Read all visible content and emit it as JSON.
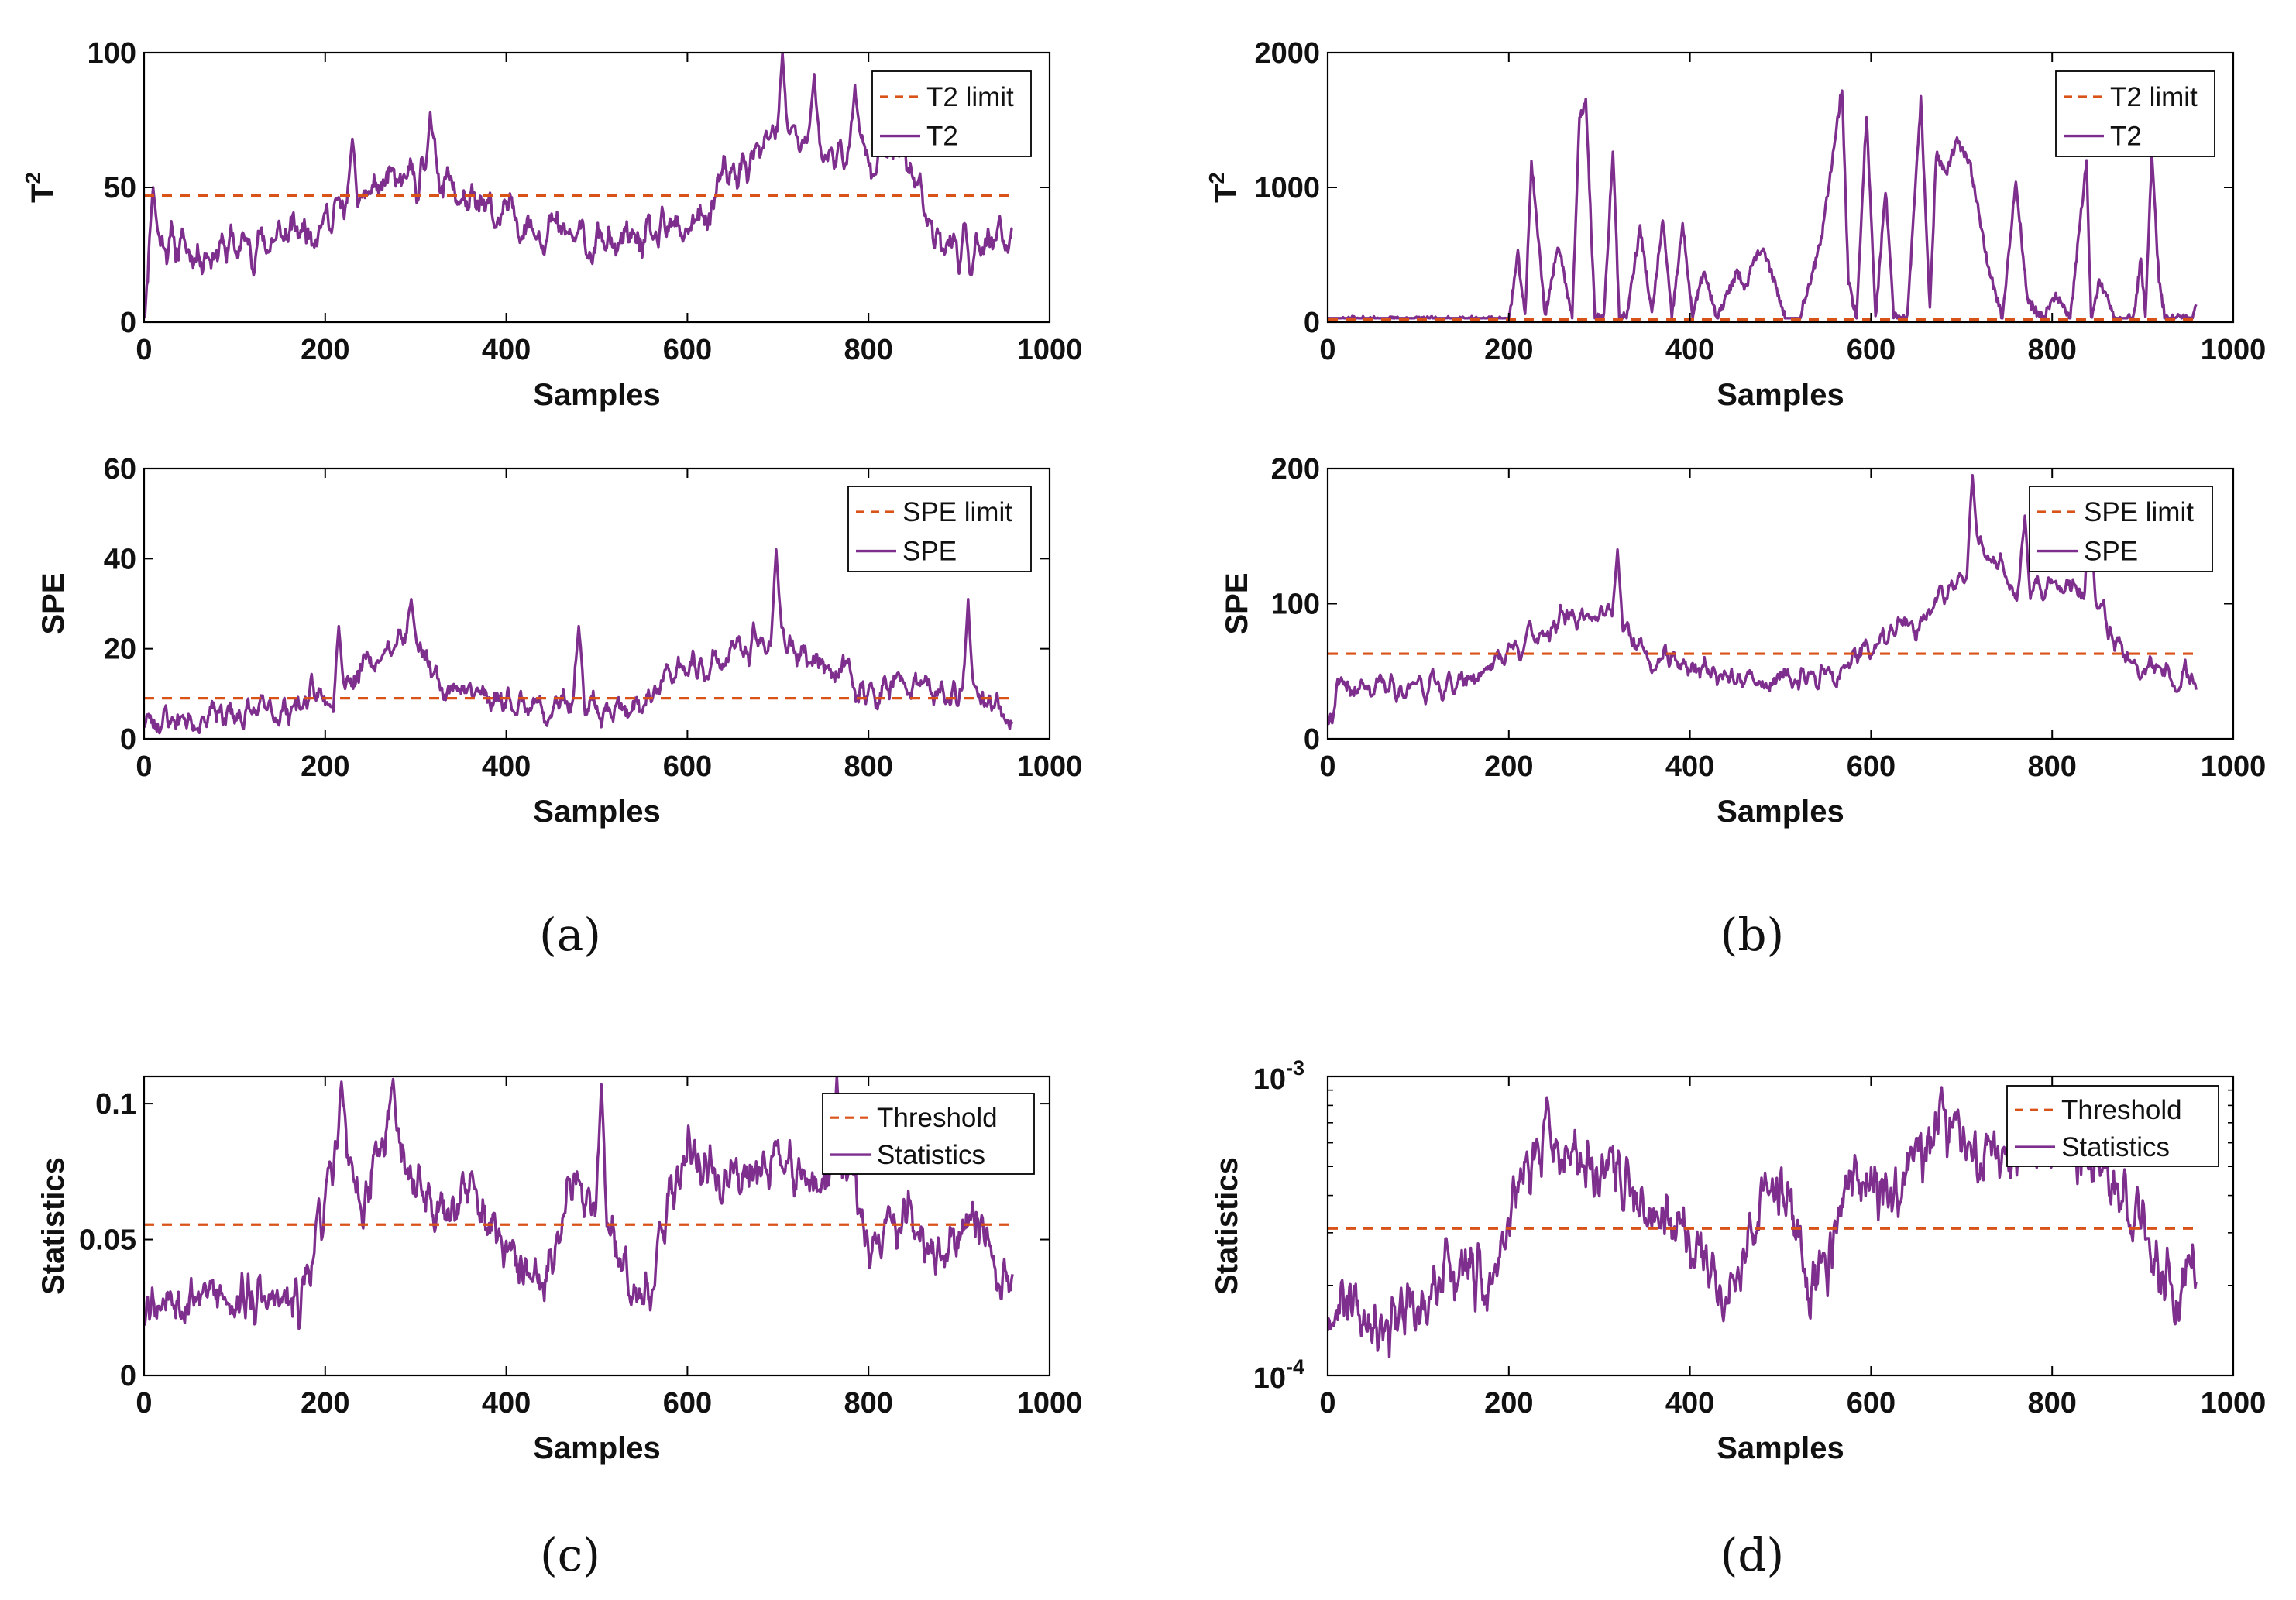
{
  "colors": {
    "series": "#7E2F8E",
    "limit": "#D95319",
    "axis": "#000000"
  },
  "panel_labels": [
    "(a)",
    "(b)",
    "(c)",
    "(d)"
  ],
  "chart_data": [
    {
      "type": "line",
      "panel": "(a)",
      "position": "top",
      "xlabel": "Samples",
      "ylabel": "T",
      "ylabel_superscript": "2",
      "xlim": [
        0,
        1000
      ],
      "ylim": [
        0,
        100
      ],
      "xticks": [
        0,
        200,
        400,
        600,
        800,
        1000
      ],
      "yticks": [
        0,
        50,
        100
      ],
      "limit_label": "T2 limit",
      "series_label": "T2",
      "limit": 47,
      "n": 960,
      "series": {
        "name": "T2",
        "x": [
          0,
          10,
          60,
          140,
          200,
          260,
          300,
          320,
          360,
          420,
          500,
          560,
          620,
          640,
          690,
          700,
          720,
          760,
          800,
          840,
          880,
          900,
          930,
          960
        ],
        "y": [
          8,
          32,
          26,
          30,
          38,
          50,
          52,
          58,
          42,
          38,
          28,
          30,
          38,
          52,
          65,
          72,
          68,
          62,
          64,
          62,
          30,
          28,
          26,
          32
        ]
      },
      "noise": 8,
      "smooth": 2,
      "spikes": [
        {
          "x": 10,
          "y": 50
        },
        {
          "x": 230,
          "y": 68
        },
        {
          "x": 316,
          "y": 78
        },
        {
          "x": 705,
          "y": 100
        },
        {
          "x": 740,
          "y": 92
        },
        {
          "x": 785,
          "y": 88
        }
      ]
    },
    {
      "type": "line",
      "panel": "(a)",
      "position": "bottom",
      "xlabel": "Samples",
      "ylabel": "SPE",
      "xlim": [
        0,
        1000
      ],
      "ylim": [
        0,
        60
      ],
      "xticks": [
        0,
        200,
        400,
        600,
        800,
        1000
      ],
      "yticks": [
        0,
        20,
        40,
        60
      ],
      "limit_label": "SPE limit",
      "series_label": "SPE",
      "limit": 9,
      "n": 960,
      "series": {
        "name": "SPE",
        "x": [
          0,
          150,
          200,
          260,
          290,
          320,
          360,
          400,
          440,
          500,
          550,
          580,
          620,
          660,
          700,
          740,
          780,
          800,
          840,
          880,
          920,
          960
        ],
        "y": [
          4,
          6,
          10,
          18,
          24,
          14,
          10,
          9,
          7,
          8,
          6,
          14,
          16,
          20,
          22,
          18,
          14,
          9,
          12,
          10,
          8,
          6
        ]
      },
      "noise": 3.6,
      "smooth": 2,
      "spikes": [
        {
          "x": 215,
          "y": 25
        },
        {
          "x": 295,
          "y": 31
        },
        {
          "x": 480,
          "y": 25
        },
        {
          "x": 698,
          "y": 42
        },
        {
          "x": 910,
          "y": 31
        }
      ]
    },
    {
      "type": "line",
      "panel": "(b)",
      "position": "top",
      "xlabel": "Samples",
      "ylabel": "T",
      "ylabel_superscript": "2",
      "xlim": [
        0,
        1000
      ],
      "ylim": [
        0,
        2000
      ],
      "xticks": [
        0,
        200,
        400,
        600,
        800,
        1000
      ],
      "yticks": [
        0,
        1000,
        2000
      ],
      "limit_label": "T2 limit",
      "series_label": "T2",
      "limit": 20,
      "n": 960,
      "series": {
        "name": "T2",
        "x": [
          0,
          190,
          200,
          210,
          218,
          225,
          240,
          255,
          270,
          278,
          285,
          295,
          305,
          315,
          322,
          330,
          345,
          358,
          370,
          380,
          392,
          403,
          415,
          430,
          452,
          462,
          470,
          480,
          490,
          505,
          520,
          545,
          568,
          575,
          584,
          595,
          605,
          616,
          625,
          640,
          655,
          665,
          672,
          683,
          695,
          710,
          730,
          745,
          760,
          773,
          790,
          805,
          820,
          838,
          843,
          852,
          870,
          880,
          890,
          898,
          903,
          910,
          918,
          925,
          945,
          955,
          962
        ],
        "y": [
          10,
          10,
          20,
          500,
          30,
          1200,
          50,
          580,
          30,
          1500,
          1650,
          40,
          30,
          1280,
          30,
          40,
          700,
          50,
          760,
          30,
          720,
          40,
          380,
          20,
          380,
          250,
          480,
          530,
          380,
          30,
          10,
          600,
          1750,
          300,
          30,
          1550,
          30,
          980,
          40,
          20,
          1650,
          100,
          1250,
          1100,
          1350,
          1150,
          400,
          30,
          1050,
          150,
          30,
          200,
          20,
          1200,
          30,
          300,
          30,
          20,
          30,
          480,
          20,
          1250,
          300,
          20,
          30,
          10,
          250
        ]
      },
      "noise": 35,
      "smooth": 0,
      "spikes": []
    },
    {
      "type": "line",
      "panel": "(b)",
      "position": "bottom",
      "xlabel": "Samples",
      "ylabel": "SPE",
      "xlim": [
        0,
        1000
      ],
      "ylim": [
        0,
        200
      ],
      "xticks": [
        0,
        200,
        400,
        600,
        800,
        1000
      ],
      "yticks": [
        0,
        100,
        200
      ],
      "limit_label": "SPE limit",
      "series_label": "SPE",
      "limit": 63,
      "n": 960,
      "series": {
        "name": "SPE",
        "x": [
          0,
          10,
          150,
          210,
          260,
          300,
          360,
          420,
          470,
          520,
          560,
          600,
          660,
          700,
          720,
          760,
          800,
          840,
          880,
          920,
          960
        ],
        "y": [
          5,
          35,
          42,
          70,
          88,
          95,
          60,
          52,
          40,
          44,
          48,
          68,
          90,
          118,
          140,
          115,
          112,
          110,
          58,
          52,
          45
        ]
      },
      "noise": 10,
      "smooth": 2,
      "spikes": [
        {
          "x": 320,
          "y": 140
        },
        {
          "x": 712,
          "y": 195
        },
        {
          "x": 770,
          "y": 165
        },
        {
          "x": 842,
          "y": 160
        }
      ]
    },
    {
      "type": "line",
      "panel": "(c)",
      "xlabel": "Samples",
      "ylabel": "Statistics",
      "xlim": [
        0,
        1000
      ],
      "ylim": [
        0,
        0.11
      ],
      "xticks": [
        0,
        200,
        400,
        600,
        800,
        1000
      ],
      "yticks": [
        0,
        0.05,
        0.1
      ],
      "limit_label": "Threshold",
      "series_label": "Statistics",
      "limit": 0.0555,
      "n": 960,
      "series": {
        "name": "Statistics",
        "x": [
          0,
          60,
          170,
          190,
          220,
          240,
          270,
          290,
          330,
          360,
          400,
          440,
          470,
          500,
          540,
          560,
          580,
          600,
          640,
          660,
          700,
          740,
          780,
          800,
          840,
          880,
          920,
          940,
          960
        ],
        "y": [
          0.028,
          0.03,
          0.026,
          0.05,
          0.09,
          0.06,
          0.095,
          0.075,
          0.06,
          0.068,
          0.045,
          0.03,
          0.07,
          0.065,
          0.035,
          0.03,
          0.065,
          0.085,
          0.07,
          0.075,
          0.08,
          0.07,
          0.078,
          0.045,
          0.06,
          0.04,
          0.06,
          0.04,
          0.03
        ]
      },
      "noise": 0.009,
      "smooth": 1,
      "spikes": [
        {
          "x": 218,
          "y": 0.108
        },
        {
          "x": 275,
          "y": 0.109
        },
        {
          "x": 505,
          "y": 0.107
        },
        {
          "x": 765,
          "y": 0.11
        }
      ]
    },
    {
      "type": "line",
      "panel": "(d)",
      "yscale": "log",
      "xlabel": "Samples",
      "ylabel": "Statistics",
      "xlim": [
        0,
        1000
      ],
      "ylim": [
        0.0001,
        0.001
      ],
      "xticks": [
        0,
        200,
        400,
        600,
        800,
        1000
      ],
      "yticks_log": [
        {
          "base": "10",
          "exp": "-4",
          "value": 0.0001
        },
        {
          "base": "10",
          "exp": "-3",
          "value": 0.001
        }
      ],
      "limit_label": "Threshold",
      "series_label": "Statistics",
      "limit": 0.00031,
      "n": 960,
      "series": {
        "name": "Statistics",
        "x": [
          0,
          20,
          60,
          110,
          130,
          180,
          200,
          220,
          250,
          300,
          330,
          360,
          390,
          420,
          440,
          470,
          500,
          530,
          550,
          580,
          620,
          650,
          680,
          720,
          760,
          800,
          840,
          870,
          900,
          920,
          940,
          960
        ],
        "y": [
          0.00016,
          0.00019,
          0.00015,
          0.00016,
          0.00024,
          0.00019,
          0.00035,
          0.0005,
          0.00055,
          0.0005,
          0.00045,
          0.00035,
          0.00035,
          0.00022,
          0.00016,
          0.00035,
          0.00045,
          0.0002,
          0.00022,
          0.00045,
          0.0004,
          0.00055,
          0.00065,
          0.0005,
          0.00055,
          0.0006,
          0.00058,
          0.00045,
          0.00035,
          0.00021,
          0.00018,
          0.00026
        ]
      },
      "noise": 0.1,
      "smooth": 1,
      "spikes": [
        {
          "x": 242,
          "y": 0.00085
        },
        {
          "x": 678,
          "y": 0.00092
        }
      ]
    }
  ]
}
